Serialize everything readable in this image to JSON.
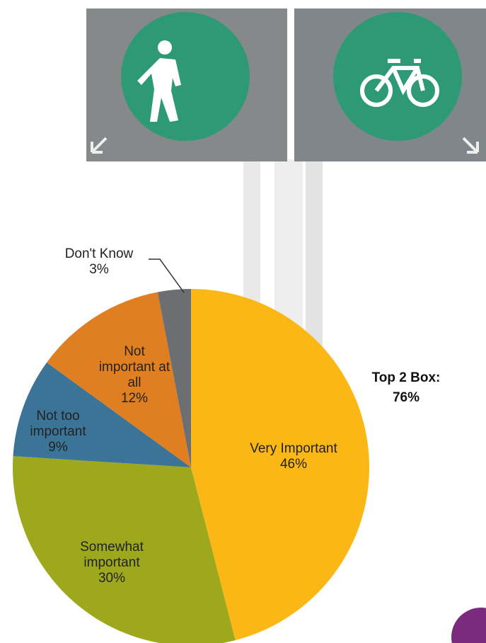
{
  "chart_data": {
    "type": "pie",
    "categories": [
      "Very Important",
      "Somewhat important",
      "Not too important",
      "Not important at all",
      "Don't Know"
    ],
    "values": [
      46,
      30,
      9,
      12,
      3
    ],
    "value_labels": [
      "46%",
      "30%",
      "9%",
      "12%",
      "3%"
    ],
    "colors": [
      "#fbb715",
      "#9ea81c",
      "#3b7496",
      "#e07f21",
      "#6d6e71"
    ],
    "annotation": "Top 2 Box: 76%"
  }
}
